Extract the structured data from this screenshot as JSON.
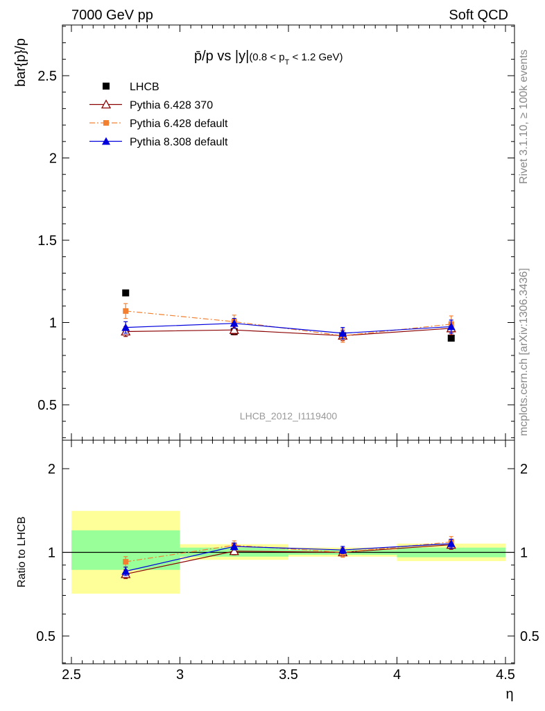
{
  "header": {
    "left": "7000 GeV pp",
    "right": "Soft QCD"
  },
  "side_texts": {
    "rivet": "Rivet 3.1.10, ≥ 100k events",
    "source": "mcplots.cern.ch [arXiv:1306.3436]"
  },
  "watermark": "LHCB_2012_I1119400",
  "main_title": {
    "text": "p̄/p vs |y|",
    "cut_open": "(0.8 < p",
    "cut_sub": "T",
    "cut_close": " < 1.2 GeV)"
  },
  "colors": {
    "lhcb": "#000000",
    "py6_370": "#8b0000",
    "py6_default": "#f28030",
    "py8_default": "#0000dd",
    "band_inner": "#99ff99",
    "band_outer": "#ffff99"
  },
  "chart_data": [
    {
      "type": "scatter",
      "panel": "main",
      "ylabel": "bar{p}/p",
      "xlabel": "η",
      "xlim": [
        2.5,
        4.5
      ],
      "ylim": [
        0.3,
        2.8
      ],
      "yticks": [
        "0.5",
        "1",
        "1.5",
        "2",
        "2.5"
      ],
      "legend_position": "top-left",
      "series": [
        {
          "name": "LHCB",
          "key": "lhcb",
          "marker": "square",
          "x": [
            2.75,
            3.25,
            3.75,
            4.25
          ],
          "y": [
            1.18,
            0.945,
            0.92,
            0.905
          ],
          "err": [
            0.01,
            0.01,
            0.01,
            0.01
          ]
        },
        {
          "name": "Pythia 6.428 370",
          "key": "py6_370",
          "marker": "open-triangle",
          "x": [
            2.75,
            3.25,
            3.75,
            4.25
          ],
          "y": [
            0.945,
            0.955,
            0.92,
            0.965
          ],
          "err": [
            0.03,
            0.03,
            0.03,
            0.04
          ]
        },
        {
          "name": "Pythia 6.428 default",
          "key": "py6_default",
          "marker": "square-small",
          "x": [
            2.75,
            3.25,
            3.75,
            4.25
          ],
          "y": [
            1.07,
            1.005,
            0.92,
            0.99
          ],
          "err": [
            0.045,
            0.04,
            0.04,
            0.05
          ]
        },
        {
          "name": "Pythia 8.308 default",
          "key": "py8_default",
          "marker": "triangle",
          "x": [
            2.75,
            3.25,
            3.75,
            4.25
          ],
          "y": [
            0.97,
            0.995,
            0.935,
            0.975
          ],
          "err": [
            0.035,
            0.03,
            0.035,
            0.04
          ]
        }
      ]
    },
    {
      "type": "scatter",
      "panel": "ratio",
      "ylabel": "Ratio to LHCB",
      "xlabel": "η",
      "xlim": [
        2.5,
        4.5
      ],
      "ylim": [
        0.35,
        2.3
      ],
      "yticks": [
        "0.5",
        "1",
        "2"
      ],
      "xticks": [
        "2.5",
        "3",
        "3.5",
        "4",
        "4.5"
      ],
      "bands": [
        {
          "x": [
            2.5,
            3.0
          ],
          "inner": [
            0.865,
            1.2
          ],
          "outer": [
            0.71,
            1.41
          ]
        },
        {
          "x": [
            3.0,
            3.5
          ],
          "inner": [
            0.965,
            1.04
          ],
          "outer": [
            0.94,
            1.07
          ]
        },
        {
          "x": [
            3.5,
            4.0
          ],
          "inner": [
            0.98,
            1.02
          ],
          "outer": [
            0.965,
            1.04
          ]
        },
        {
          "x": [
            4.0,
            4.5
          ],
          "inner": [
            0.96,
            1.04
          ],
          "outer": [
            0.93,
            1.075
          ]
        }
      ],
      "series": [
        {
          "name": "Pythia 6.428 370",
          "key": "py6_370",
          "marker": "open-triangle",
          "x": [
            2.75,
            3.25,
            3.75,
            4.25
          ],
          "y": [
            0.835,
            1.01,
            1.0,
            1.065
          ],
          "err": [
            0.03,
            0.03,
            0.03,
            0.04
          ]
        },
        {
          "name": "Pythia 6.428 default",
          "key": "py6_default",
          "marker": "square-small",
          "x": [
            2.75,
            3.25,
            3.75,
            4.25
          ],
          "y": [
            0.925,
            1.06,
            1.0,
            1.09
          ],
          "err": [
            0.04,
            0.04,
            0.04,
            0.05
          ]
        },
        {
          "name": "Pythia 8.308 default",
          "key": "py8_default",
          "marker": "triangle",
          "x": [
            2.75,
            3.25,
            3.75,
            4.25
          ],
          "y": [
            0.855,
            1.05,
            1.02,
            1.075
          ],
          "err": [
            0.03,
            0.03,
            0.03,
            0.04
          ]
        }
      ]
    }
  ]
}
